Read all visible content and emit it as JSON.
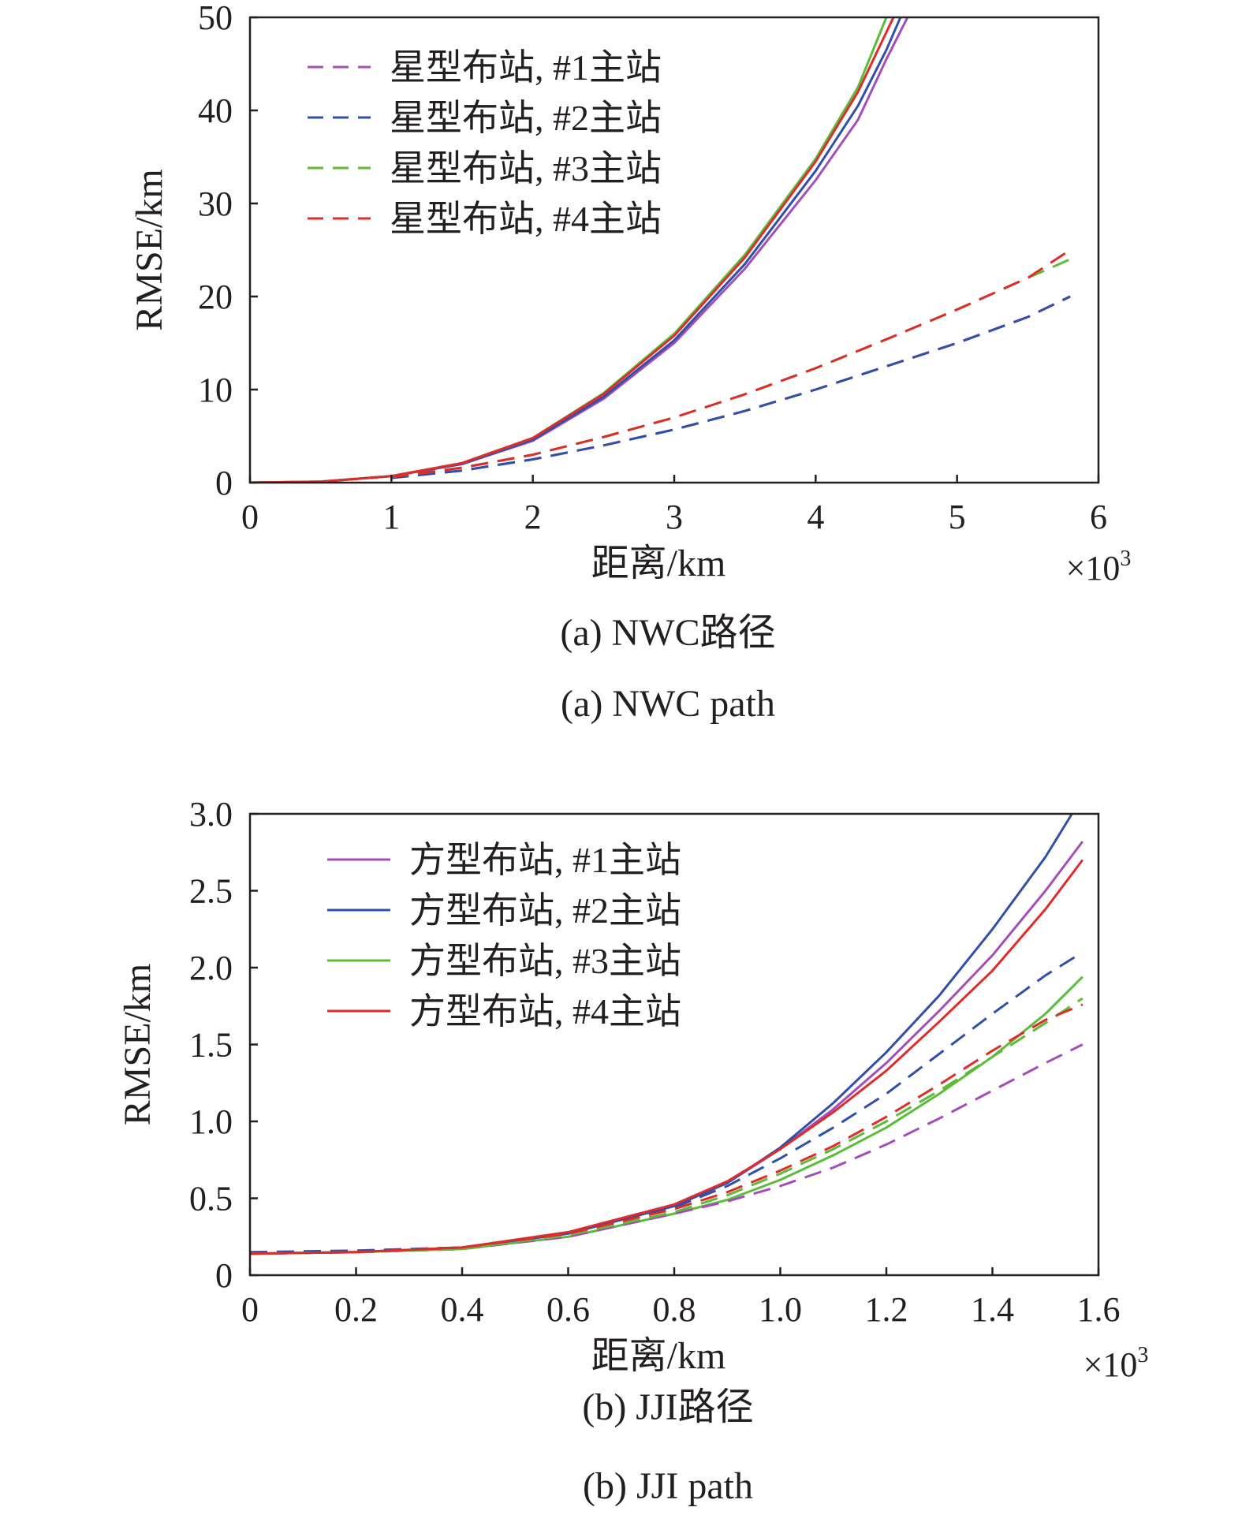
{
  "colors": {
    "series1": "#a34db8",
    "series2": "#2f4fa8",
    "series3": "#5cbc3a",
    "series4": "#e02b2b",
    "axis": "#231f20"
  },
  "chart_data": [
    {
      "type": "line",
      "caption_cn": "(a) NWC路径",
      "caption_en": "(a) NWC path",
      "xlabel": "距离/km",
      "ylabel": "RMSE/km",
      "x_multiplier": "×10",
      "x_multiplier_exp": "3",
      "xlim": [
        0,
        6
      ],
      "ylim": [
        0,
        50
      ],
      "xticks": [
        "0",
        "1",
        "2",
        "3",
        "4",
        "5",
        "6"
      ],
      "yticks": [
        "0",
        "10",
        "20",
        "30",
        "40",
        "50"
      ],
      "xtick_values": [
        0,
        1,
        2,
        3,
        4,
        5,
        6
      ],
      "ytick_values": [
        0,
        10,
        20,
        30,
        40,
        50
      ],
      "legend_position": "top-left",
      "legend": [
        {
          "label": "星型布站, #1主站",
          "style": "dashed",
          "color_key": "series1"
        },
        {
          "label": "星型布站, #2主站",
          "style": "dashed",
          "color_key": "series2"
        },
        {
          "label": "星型布站, #3主站",
          "style": "dashed",
          "color_key": "series3"
        },
        {
          "label": "星型布站, #4主站",
          "style": "dashed",
          "color_key": "series4"
        }
      ],
      "series": [
        {
          "group": "solid",
          "style": "solid",
          "color_key": "series1",
          "x": [
            0,
            0.5,
            1.0,
            1.5,
            2.0,
            2.5,
            3.0,
            3.5,
            4.0,
            4.3,
            4.5,
            4.65
          ],
          "y": [
            0,
            0.1,
            0.7,
            2.0,
            4.5,
            9.0,
            15.0,
            23.0,
            32.5,
            39.0,
            45.5,
            50
          ]
        },
        {
          "group": "solid",
          "style": "solid",
          "color_key": "series2",
          "x": [
            0,
            0.5,
            1.0,
            1.5,
            2.0,
            2.5,
            3.0,
            3.5,
            4.0,
            4.3,
            4.5,
            4.6
          ],
          "y": [
            0,
            0.1,
            0.7,
            2.0,
            4.6,
            9.2,
            15.3,
            23.5,
            33.5,
            40.5,
            46.5,
            50
          ]
        },
        {
          "group": "solid",
          "style": "solid",
          "color_key": "series3",
          "x": [
            0,
            0.5,
            1.0,
            1.5,
            2.0,
            2.5,
            3.0,
            3.5,
            4.0,
            4.3,
            4.5
          ],
          "y": [
            0,
            0.1,
            0.7,
            2.1,
            4.8,
            9.6,
            16.0,
            24.5,
            34.8,
            42.5,
            50
          ]
        },
        {
          "group": "solid",
          "style": "solid",
          "color_key": "series4",
          "x": [
            0,
            0.5,
            1.0,
            1.5,
            2.0,
            2.5,
            3.0,
            3.5,
            4.0,
            4.3,
            4.55
          ],
          "y": [
            0,
            0.1,
            0.7,
            2.1,
            4.8,
            9.5,
            15.8,
            24.2,
            34.5,
            42.0,
            50
          ]
        },
        {
          "group": "dashed",
          "style": "dashed",
          "color_key": "series1",
          "x": [
            1.0,
            1.5,
            2.0,
            2.5,
            3.0,
            3.5,
            4.0,
            4.5,
            5.0,
            5.5,
            5.8
          ],
          "y": [
            0.5,
            1.3,
            2.5,
            4.0,
            5.7,
            7.7,
            10.0,
            12.5,
            15.0,
            17.8,
            20.0
          ]
        },
        {
          "group": "dashed",
          "style": "dashed",
          "color_key": "series2",
          "x": [
            1.0,
            1.5,
            2.0,
            2.5,
            3.0,
            3.5,
            4.0,
            4.5,
            5.0,
            5.5,
            5.8
          ],
          "y": [
            0.5,
            1.3,
            2.5,
            4.0,
            5.7,
            7.7,
            10.0,
            12.5,
            15.0,
            17.8,
            20.0
          ]
        },
        {
          "group": "dashed",
          "style": "dashed",
          "color_key": "series3",
          "x": [
            1.0,
            1.5,
            2.0,
            2.5,
            3.0,
            3.5,
            4.0,
            4.5,
            5.0,
            5.5,
            5.8
          ],
          "y": [
            0.6,
            1.6,
            3.0,
            4.9,
            7.0,
            9.5,
            12.3,
            15.4,
            18.6,
            22.0,
            24.0
          ]
        },
        {
          "group": "dashed",
          "style": "dashed",
          "color_key": "series4",
          "x": [
            1.0,
            1.5,
            2.0,
            2.5,
            3.0,
            3.5,
            4.0,
            4.5,
            5.0,
            5.5,
            5.8
          ],
          "y": [
            0.6,
            1.6,
            3.0,
            4.9,
            7.0,
            9.5,
            12.3,
            15.4,
            18.6,
            22.0,
            25.0
          ]
        }
      ]
    },
    {
      "type": "line",
      "caption_cn": "(b) JJI路径",
      "caption_en": "(b) JJI path",
      "xlabel": "距离/km",
      "ylabel": "RMSE/km",
      "x_multiplier": "×10",
      "x_multiplier_exp": "3",
      "xlim": [
        0,
        1.6
      ],
      "ylim": [
        0,
        3.0
      ],
      "xticks": [
        "0",
        "0.2",
        "0.4",
        "0.6",
        "0.8",
        "1.0",
        "1.2",
        "1.4",
        "1.6"
      ],
      "yticks": [
        "0",
        "0.5",
        "1.0",
        "1.5",
        "2.0",
        "2.5",
        "3.0"
      ],
      "xtick_values": [
        0,
        0.2,
        0.4,
        0.6,
        0.8,
        1.0,
        1.2,
        1.4,
        1.6
      ],
      "ytick_values": [
        0,
        0.5,
        1.0,
        1.5,
        2.0,
        2.5,
        3.0
      ],
      "legend_position": "top-left",
      "legend": [
        {
          "label": "方型布站, #1主站",
          "style": "solid",
          "color_key": "series1"
        },
        {
          "label": "方型布站, #2主站",
          "style": "solid",
          "color_key": "series2"
        },
        {
          "label": "方型布站, #3主站",
          "style": "solid",
          "color_key": "series3"
        },
        {
          "label": "方型布站, #4主站",
          "style": "solid",
          "color_key": "series4"
        }
      ],
      "series": [
        {
          "group": "solid",
          "style": "solid",
          "color_key": "series1",
          "x": [
            0,
            0.2,
            0.4,
            0.6,
            0.8,
            0.9,
            1.0,
            1.1,
            1.2,
            1.3,
            1.4,
            1.5,
            1.57
          ],
          "y": [
            0.14,
            0.15,
            0.18,
            0.27,
            0.45,
            0.6,
            0.82,
            1.08,
            1.38,
            1.72,
            2.08,
            2.5,
            2.82
          ]
        },
        {
          "group": "solid",
          "style": "solid",
          "color_key": "series2",
          "x": [
            0,
            0.2,
            0.4,
            0.6,
            0.8,
            0.9,
            1.0,
            1.1,
            1.2,
            1.3,
            1.4,
            1.5,
            1.55
          ],
          "y": [
            0.14,
            0.15,
            0.18,
            0.27,
            0.45,
            0.6,
            0.83,
            1.12,
            1.45,
            1.82,
            2.25,
            2.72,
            3.0
          ]
        },
        {
          "group": "solid",
          "style": "solid",
          "color_key": "series3",
          "x": [
            0,
            0.2,
            0.4,
            0.6,
            0.8,
            0.9,
            1.0,
            1.1,
            1.2,
            1.3,
            1.4,
            1.5,
            1.57
          ],
          "y": [
            0.14,
            0.15,
            0.17,
            0.25,
            0.4,
            0.49,
            0.62,
            0.78,
            0.96,
            1.18,
            1.42,
            1.7,
            1.94
          ]
        },
        {
          "group": "solid",
          "style": "solid",
          "color_key": "series4",
          "x": [
            0,
            0.2,
            0.4,
            0.6,
            0.8,
            0.9,
            1.0,
            1.1,
            1.2,
            1.3,
            1.4,
            1.5,
            1.57
          ],
          "y": [
            0.14,
            0.15,
            0.18,
            0.28,
            0.46,
            0.61,
            0.82,
            1.06,
            1.33,
            1.65,
            1.98,
            2.38,
            2.7
          ]
        },
        {
          "group": "dashed",
          "style": "dashed",
          "color_key": "series1",
          "x": [
            0,
            0.2,
            0.4,
            0.6,
            0.8,
            0.9,
            1.0,
            1.1,
            1.2,
            1.3,
            1.4,
            1.5,
            1.57
          ],
          "y": [
            0.14,
            0.15,
            0.17,
            0.25,
            0.4,
            0.48,
            0.58,
            0.7,
            0.85,
            1.02,
            1.2,
            1.38,
            1.5
          ]
        },
        {
          "group": "dashed",
          "style": "dashed",
          "color_key": "series2",
          "x": [
            0,
            0.2,
            0.4,
            0.6,
            0.8,
            0.9,
            1.0,
            1.1,
            1.2,
            1.3,
            1.4,
            1.5,
            1.57
          ],
          "y": [
            0.15,
            0.16,
            0.18,
            0.27,
            0.44,
            0.58,
            0.76,
            0.96,
            1.18,
            1.44,
            1.7,
            1.95,
            2.1
          ]
        },
        {
          "group": "dashed",
          "style": "dashed",
          "color_key": "series3",
          "x": [
            0,
            0.2,
            0.4,
            0.6,
            0.8,
            0.9,
            1.0,
            1.1,
            1.2,
            1.3,
            1.4,
            1.5,
            1.57
          ],
          "y": [
            0.14,
            0.15,
            0.17,
            0.26,
            0.41,
            0.52,
            0.66,
            0.82,
            1.0,
            1.2,
            1.42,
            1.64,
            1.8
          ]
        },
        {
          "group": "dashed",
          "style": "dashed",
          "color_key": "series4",
          "x": [
            0,
            0.2,
            0.4,
            0.6,
            0.8,
            0.9,
            1.0,
            1.1,
            1.2,
            1.3,
            1.4,
            1.5,
            1.57
          ],
          "y": [
            0.14,
            0.15,
            0.18,
            0.27,
            0.43,
            0.54,
            0.68,
            0.84,
            1.03,
            1.24,
            1.46,
            1.66,
            1.76
          ]
        }
      ]
    }
  ]
}
